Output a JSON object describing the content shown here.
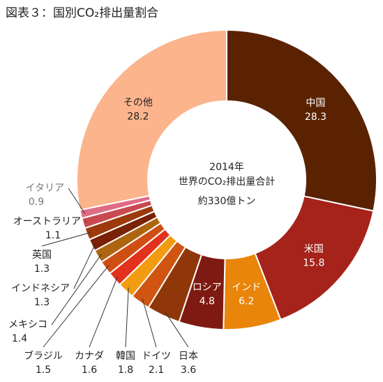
{
  "chart_data": {
    "type": "pie",
    "title": "図表３：国別CO₂排出量割合",
    "center_text": {
      "line1": "2014年",
      "line2": "世界のCO₂排出量合計",
      "line3": "約330億トン"
    },
    "slices": [
      {
        "name": "中国",
        "value": 28.3,
        "value_label": "28.3",
        "color": "#5a2200"
      },
      {
        "name": "米国",
        "value": 15.8,
        "value_label": "15.8",
        "color": "#a5231b"
      },
      {
        "name": "インド",
        "value": 6.2,
        "value_label": "6.2",
        "color": "#e8850a"
      },
      {
        "name": "ロシア",
        "value": 4.8,
        "value_label": "4.8",
        "color": "#7e1a12"
      },
      {
        "name": "日本",
        "value": 3.6,
        "value_label": "3.6",
        "color": "#8f3708"
      },
      {
        "name": "ドイツ",
        "value": 2.1,
        "value_label": "2.1",
        "color": "#cf5510"
      },
      {
        "name": "韓国",
        "value": 1.8,
        "value_label": "1.8",
        "color": "#f39b10"
      },
      {
        "name": "カナダ",
        "value": 1.6,
        "value_label": "1.6",
        "color": "#e2321e"
      },
      {
        "name": "ブラジル",
        "value": 1.5,
        "value_label": "1.5",
        "color": "#cf4f12"
      },
      {
        "name": "メキシコ",
        "value": 1.4,
        "value_label": "1.4",
        "color": "#ad6510"
      },
      {
        "name": "インドネシア",
        "value": 1.3,
        "value_label": "1.3",
        "color": "#7a2108"
      },
      {
        "name": "英国",
        "value": 1.3,
        "value_label": "1.3",
        "color": "#9c3a0c"
      },
      {
        "name": "オーストラリア",
        "value": 1.1,
        "value_label": "1.1",
        "color": "#c84a4f"
      },
      {
        "name": "イタリア",
        "value": 0.9,
        "value_label": "0.9",
        "color": "#e06b84"
      },
      {
        "name": "その他",
        "value": 28.2,
        "value_label": "28.2",
        "color": "#fbb48c"
      }
    ]
  }
}
